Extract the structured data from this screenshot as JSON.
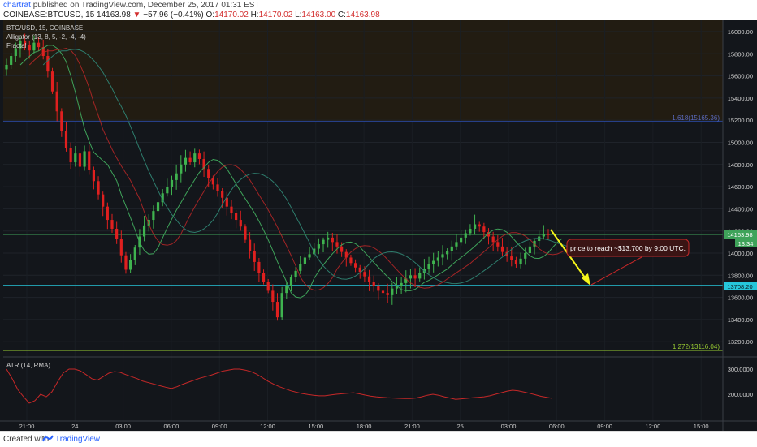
{
  "header": {
    "user": "chartrat",
    "published": "published on TradingView.com, December 25, 2017 01:31 EST",
    "symbol": "COINBASE:BTCUSD, 15",
    "last": "14163.98",
    "change_arrow": "▼",
    "change": "−57.96 (−0.41%)",
    "o_label": "O:",
    "o": "14170.02",
    "h_label": "H:",
    "h": "14170.02",
    "l_label": "L:",
    "l": "14163.00",
    "c_label": "C:",
    "c": "14163.98"
  },
  "legend": {
    "symbol": "BTC/USD, 15, COINBASE",
    "alligator": "Alligator (13, 8, 5, -2, -4, -4)",
    "fractal": "Fractal"
  },
  "levels": {
    "fib1618": "1.618(15165.36)",
    "fib1272": "1.272(13116.04)",
    "target_tag": "13708.20",
    "price_tag": "14163.98",
    "timer_tag": "13:34"
  },
  "annotation": "price to reach ~$13,700 by 9:00 UTC.",
  "atr_label": "ATR (14, RMA)",
  "footer": {
    "created": "Created with",
    "brand": "TradingView"
  },
  "colors": {
    "bg": "#13161b",
    "up": "#3fb34f",
    "down": "#e0201f",
    "shade": "#221c12",
    "fib": "#2962ff",
    "fib2": "#9acd32",
    "cyan": "#26c6da",
    "green_line": "#3fa35a",
    "arrow": "#f5f51a",
    "atr": "#c62828"
  },
  "chart_data": {
    "type": "candlestick",
    "symbol": "BTC/USD",
    "interval": "15",
    "y_ticks": [
      "16000.00",
      "15800.00",
      "15600.00",
      "15400.00",
      "15200.00",
      "15000.00",
      "14800.00",
      "14600.00",
      "14400.00",
      "14200.00",
      "14000.00",
      "13800.00",
      "13600.00",
      "13400.00",
      "13200.00"
    ],
    "x_ticks": [
      "21:00",
      "24",
      "03:00",
      "06:00",
      "09:00",
      "12:00",
      "15:00",
      "18:00",
      "21:00",
      "25",
      "03:00",
      "06:00",
      "09:00",
      "12:00",
      "15:00"
    ],
    "close": [
      15700,
      15780,
      15850,
      15920,
      15880,
      15830,
      15900,
      15860,
      15780,
      15640,
      15460,
      15280,
      15100,
      14950,
      14820,
      14900,
      14780,
      14920,
      14750,
      14650,
      14530,
      14420,
      14300,
      14220,
      14130,
      13980,
      13850,
      13940,
      14050,
      14150,
      14250,
      14300,
      14380,
      14460,
      14540,
      14600,
      14660,
      14720,
      14800,
      14860,
      14820,
      14900,
      14850,
      14760,
      14680,
      14620,
      14560,
      14500,
      14420,
      14360,
      14300,
      14240,
      14120,
      14020,
      13920,
      13820,
      13740,
      13660,
      13560,
      13420,
      13640,
      13700,
      13780,
      13840,
      13900,
      13960,
      13990,
      14040,
      14080,
      14120,
      14140,
      14100,
      14060,
      14010,
      13960,
      13910,
      13870,
      13830,
      13790,
      13740,
      13700,
      13660,
      13640,
      13620,
      13680,
      13700,
      13730,
      13770,
      13800,
      13770,
      13820,
      13860,
      13900,
      13930,
      13960,
      13990,
      14020,
      14060,
      14100,
      14140,
      14180,
      14220,
      14260,
      14240,
      14190,
      14150,
      14100,
      14060,
      14010,
      13970,
      13940,
      13900,
      13950,
      14000,
      14060,
      14110,
      14150,
      14170,
      14164
    ],
    "atr_y_ticks": [
      "300.0000",
      "200.0000"
    ],
    "atr": [
      300,
      262,
      218,
      190,
      165,
      175,
      200,
      190,
      210,
      250,
      285,
      300,
      300,
      293,
      278,
      262,
      256,
      270,
      284,
      290,
      287,
      278,
      270,
      262,
      252,
      246,
      240,
      234,
      228,
      223,
      230,
      240,
      248,
      256,
      264,
      270,
      276,
      284,
      292,
      296,
      300,
      300,
      296,
      290,
      280,
      266,
      252,
      240,
      230,
      222,
      214,
      208,
      203,
      199,
      196,
      194,
      194,
      197,
      200,
      202,
      204,
      206,
      202,
      197,
      193,
      190,
      188,
      186,
      185,
      184,
      183,
      183,
      185,
      190,
      196,
      200,
      196,
      190,
      185,
      180,
      182,
      184,
      186,
      188,
      190,
      194,
      200,
      206,
      212,
      216,
      214,
      209,
      204,
      198,
      192,
      188,
      184
    ]
  }
}
